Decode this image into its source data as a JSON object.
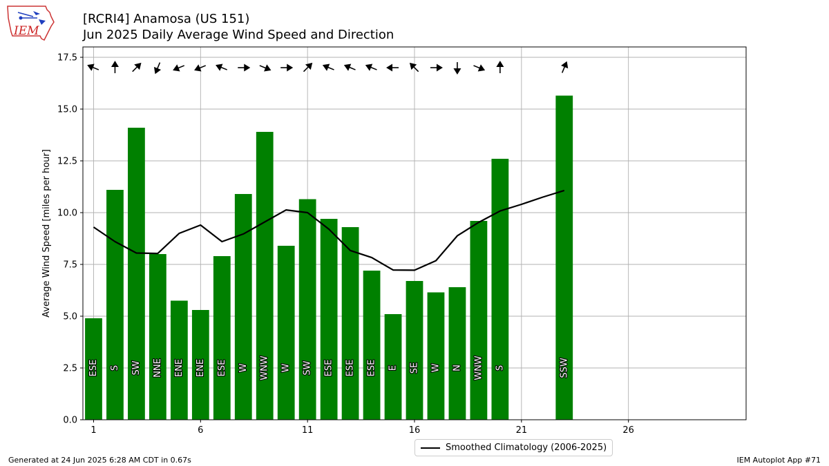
{
  "header": {
    "title_line1": "[RCRI4] Anamosa (US 151)",
    "title_line2": "Jun 2025 Daily Average Wind Speed and Direction",
    "logo_text": "IEM"
  },
  "footer": {
    "left": "Generated at 24 Jun 2025 6:28 AM CDT in 0.67s",
    "right": "IEM Autoplot App #71"
  },
  "legend": {
    "climatology_label": "Smoothed Climatology (2006-2025)"
  },
  "colors": {
    "bar": "#008000",
    "climatology_line": "#000000",
    "grid": "#b0b0b0",
    "arrow": "#000000"
  },
  "chart_data": {
    "type": "bar",
    "ylabel": "Average Wind Speed [miles per hour]",
    "xlim": [
      0.5,
      31.5
    ],
    "ylim": [
      0,
      18
    ],
    "xticks": [
      1,
      6,
      11,
      16,
      21,
      26
    ],
    "yticks": [
      0.0,
      2.5,
      5.0,
      7.5,
      10.0,
      12.5,
      15.0,
      17.5
    ],
    "grid": true,
    "legend_position": "below-center",
    "bars": {
      "days": [
        1,
        2,
        3,
        4,
        5,
        6,
        7,
        8,
        9,
        10,
        11,
        12,
        13,
        14,
        15,
        16,
        17,
        18,
        19,
        20,
        23
      ],
      "values": [
        4.9,
        11.1,
        14.1,
        8.0,
        5.75,
        5.3,
        7.9,
        10.9,
        13.9,
        8.4,
        10.65,
        9.7,
        9.3,
        7.2,
        5.1,
        6.7,
        6.15,
        6.4,
        9.6,
        12.6,
        15.65
      ],
      "direction_labels": [
        "ESE",
        "S",
        "SW",
        "NNE",
        "ENE",
        "ENE",
        "ESE",
        "W",
        "WNW",
        "W",
        "SW",
        "ESE",
        "ESE",
        "ESE",
        "E",
        "SE",
        "W",
        "N",
        "WNW",
        "S",
        "SSW"
      ],
      "arrow_directions_deg": [
        112.5,
        180,
        225,
        22.5,
        67.5,
        67.5,
        112.5,
        270,
        292.5,
        270,
        225,
        112.5,
        112.5,
        112.5,
        90,
        135,
        270,
        0,
        292.5,
        180,
        202.5
      ]
    },
    "climatology": {
      "name": "Smoothed Climatology (2006-2025)",
      "x": [
        1,
        2,
        3,
        4,
        5,
        6,
        7,
        8,
        9,
        10,
        11,
        12,
        13,
        14,
        15,
        16,
        17,
        18,
        19,
        20,
        21,
        22,
        23
      ],
      "y": [
        9.3,
        8.6,
        8.05,
        8.03,
        9.0,
        9.4,
        8.6,
        8.97,
        9.55,
        10.13,
        10.0,
        9.2,
        8.17,
        7.83,
        7.23,
        7.22,
        7.68,
        8.88,
        9.53,
        10.08,
        10.4,
        10.75,
        11.07
      ]
    }
  }
}
